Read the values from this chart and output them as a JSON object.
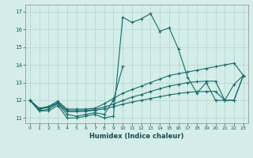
{
  "x": [
    0,
    1,
    2,
    3,
    4,
    5,
    6,
    7,
    8,
    9,
    10,
    11,
    12,
    13,
    14,
    15,
    16,
    17,
    18,
    19,
    20,
    21,
    22,
    23
  ],
  "line1": [
    12.0,
    11.4,
    11.4,
    11.7,
    11.0,
    11.0,
    11.1,
    11.2,
    11.0,
    11.1,
    16.7,
    16.4,
    16.6,
    16.9,
    15.9,
    16.1,
    14.9,
    13.3,
    12.4,
    13.0,
    12.0,
    12.0,
    12.9,
    13.4
  ],
  "line2_x": [
    0,
    1,
    2,
    3,
    4,
    5,
    6,
    7,
    8,
    9,
    10
  ],
  "line2_y": [
    12.0,
    11.4,
    11.5,
    11.8,
    11.2,
    11.1,
    11.2,
    11.3,
    11.2,
    12.0,
    13.9
  ],
  "line3": [
    12.0,
    11.55,
    11.65,
    11.95,
    11.5,
    11.5,
    11.5,
    11.55,
    11.8,
    12.1,
    12.4,
    12.6,
    12.8,
    13.0,
    13.2,
    13.4,
    13.5,
    13.6,
    13.7,
    13.8,
    13.9,
    14.0,
    14.1,
    13.4
  ],
  "line4": [
    12.0,
    11.52,
    11.62,
    11.88,
    11.42,
    11.42,
    11.42,
    11.48,
    11.62,
    11.78,
    11.98,
    12.18,
    12.32,
    12.5,
    12.65,
    12.8,
    12.9,
    13.0,
    13.05,
    13.08,
    13.08,
    12.0,
    12.0,
    13.4
  ],
  "line5": [
    12.0,
    11.5,
    11.6,
    11.82,
    11.35,
    11.35,
    11.38,
    11.43,
    11.52,
    11.63,
    11.78,
    11.9,
    12.0,
    12.1,
    12.2,
    12.3,
    12.38,
    12.45,
    12.48,
    12.5,
    12.5,
    12.0,
    12.0,
    13.4
  ],
  "bg_color": "#d4ede8",
  "line_color": "#1a6b6b",
  "grid_color": "#b8d8d2",
  "xlabel": "Humidex (Indice chaleur)",
  "yticks": [
    11,
    12,
    13,
    14,
    15,
    16,
    17
  ],
  "xlim": [
    -0.5,
    23.5
  ],
  "ylim": [
    10.7,
    17.4
  ]
}
